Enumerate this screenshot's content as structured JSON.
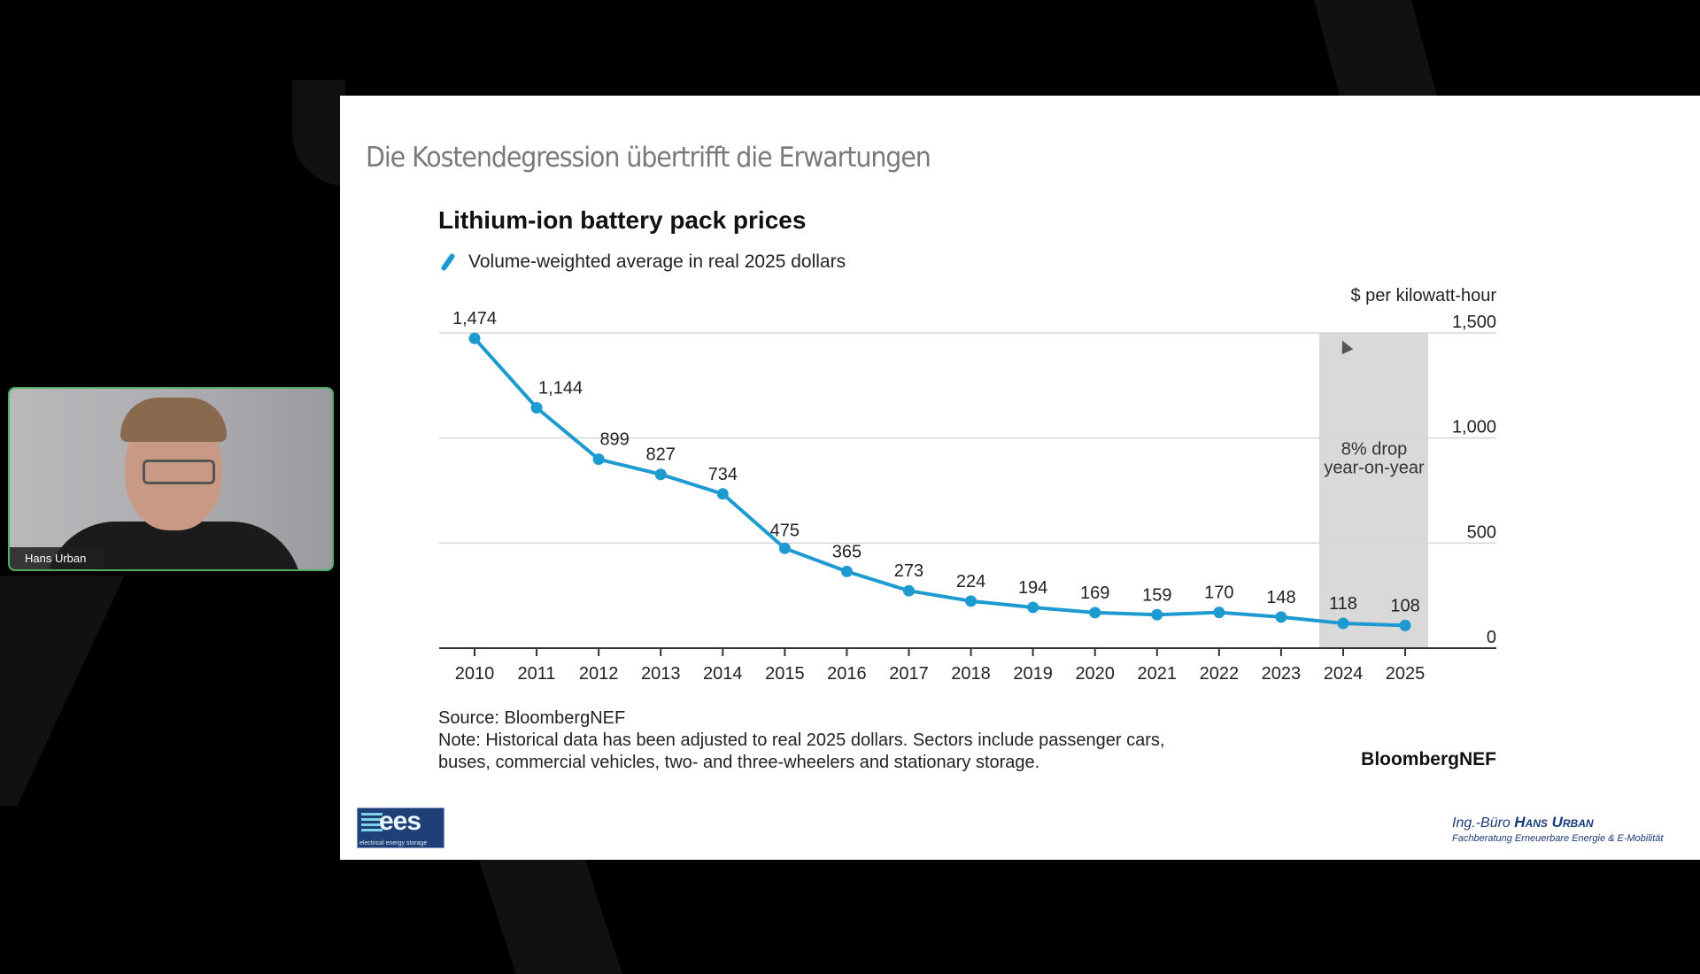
{
  "meeting": {
    "participant_name": "Hans Urban"
  },
  "slide": {
    "title": "Die Kostendegression übertrifft die Erwartungen",
    "logo": {
      "main": "ees",
      "sub": "electrical energy storage"
    },
    "footer_brand": {
      "prefix": "Ing.-Büro",
      "name": "Hans Urban",
      "tagline": "Fachberatung Erneuerbare Energie & E-Mobilität"
    }
  },
  "chart_data": {
    "type": "line",
    "title": "Lithium-ion battery pack prices",
    "legend": [
      "Volume-weighted average in real 2025 dollars"
    ],
    "legend_placement": "top-left",
    "ylabel": "$ per kilowatt-hour",
    "xlabel": "",
    "y_axis_side": "right",
    "ylim": [
      0,
      1500
    ],
    "yticks": [
      0,
      500,
      1000,
      1500
    ],
    "ytick_labels": [
      "0",
      "500",
      "1,000",
      "1,500"
    ],
    "grid": true,
    "categories": [
      "2010",
      "2011",
      "2012",
      "2013",
      "2014",
      "2015",
      "2016",
      "2017",
      "2018",
      "2019",
      "2020",
      "2021",
      "2022",
      "2023",
      "2024",
      "2025"
    ],
    "series": [
      {
        "name": "Volume-weighted average in real 2025 dollars",
        "color": "#1d9bd1",
        "values": [
          1474,
          1144,
          899,
          827,
          734,
          475,
          365,
          273,
          224,
          194,
          169,
          159,
          170,
          148,
          118,
          108
        ],
        "labels": [
          "1,474",
          "1,144",
          "899",
          "827",
          "734",
          "475",
          "365",
          "273",
          "224",
          "194",
          "169",
          "159",
          "170",
          "148",
          "118",
          "108"
        ]
      }
    ],
    "annotations": [
      {
        "text": "8% drop\nyear-on-year",
        "line1": "8% drop",
        "line2": "year-on-year",
        "highlight_range": [
          "2024",
          "2025"
        ],
        "highlight_color": "#d9d9d9"
      }
    ],
    "source": "Source: BloombergNEF",
    "note_line1": "Note: Historical data has been adjusted to real 2025 dollars. Sectors include passenger cars,",
    "note_line2": "buses, commercial vehicles, two- and three-wheelers and stationary storage.",
    "brand": "BloombergNEF"
  }
}
